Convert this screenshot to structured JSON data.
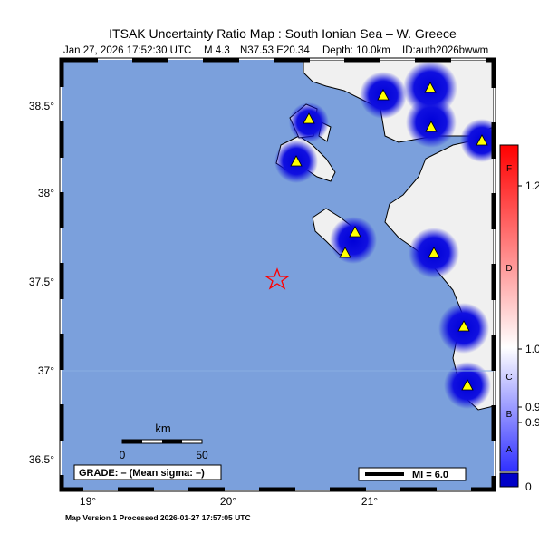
{
  "header": {
    "title": "ITSAK Uncertainty Ratio Map : South Ionian Sea – W. Greece",
    "subtitle": [
      "Jan 27, 2026 17:52:30 UTC",
      "M 4.3",
      "N37.53 E20.34",
      "Depth: 10.0km",
      "ID:auth2026bwwm"
    ]
  },
  "map": {
    "lat_labels": [
      "38.5°",
      "38°",
      "37.5°",
      "37°",
      "36.5°"
    ],
    "lon_labels": [
      "19°",
      "20°",
      "21°"
    ],
    "scale_bar": {
      "unit": "km",
      "labels": [
        "0",
        "50"
      ]
    },
    "grade_label": "GRADE: – (Mean sigma: –)",
    "legend_label": "MI = 6.0"
  },
  "colorbar": {
    "grades": [
      "F",
      "D",
      "C",
      "B",
      "A"
    ],
    "labels": [
      "1.2",
      "1.0",
      "0.9",
      "0.9",
      "0"
    ]
  },
  "footer": "Map Version 1 Processed 2026-01-27 17:57:05 UTC"
}
